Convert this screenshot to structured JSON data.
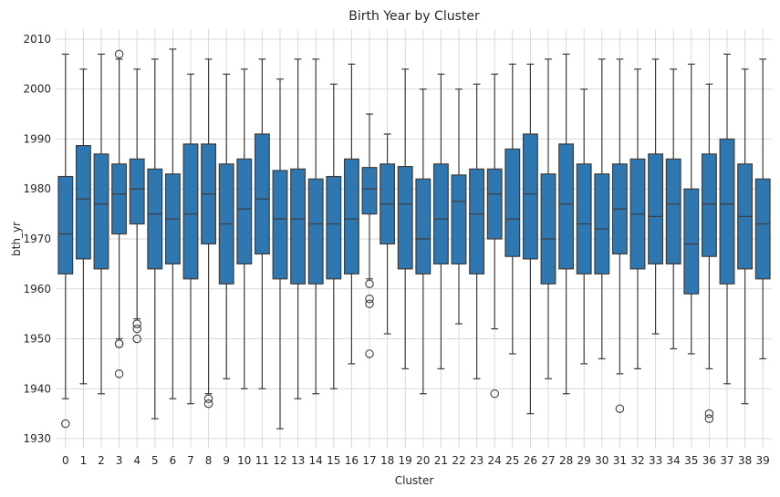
{
  "chart_data": {
    "type": "box",
    "title": "Birth Year by Cluster",
    "xlabel": "Cluster",
    "ylabel": "bth_yr",
    "ylim": [
      1928,
      2012
    ],
    "yticks": [
      1930,
      1940,
      1950,
      1960,
      1970,
      1980,
      1990,
      2000,
      2010
    ],
    "grid": true,
    "box_color": "#2f77b0",
    "edge_color": "#3d3d3d",
    "categories": [
      "0",
      "1",
      "2",
      "3",
      "4",
      "5",
      "6",
      "7",
      "8",
      "9",
      "10",
      "11",
      "12",
      "13",
      "14",
      "15",
      "16",
      "17",
      "18",
      "19",
      "20",
      "21",
      "22",
      "23",
      "24",
      "25",
      "26",
      "27",
      "28",
      "29",
      "30",
      "31",
      "32",
      "33",
      "34",
      "35",
      "36",
      "37",
      "38",
      "39"
    ],
    "boxes": [
      {
        "whisker_low": 1938,
        "q1": 1963,
        "median": 1971,
        "q3": 1982.5,
        "whisker_high": 2007,
        "outliers": [
          1933
        ]
      },
      {
        "whisker_low": 1941,
        "q1": 1966,
        "median": 1978,
        "q3": 1988.7,
        "whisker_high": 2004,
        "outliers": []
      },
      {
        "whisker_low": 1939,
        "q1": 1964,
        "median": 1977,
        "q3": 1987,
        "whisker_high": 2007,
        "outliers": []
      },
      {
        "whisker_low": 1950,
        "q1": 1971,
        "median": 1979,
        "q3": 1985,
        "whisker_high": 2006,
        "outliers": [
          2007,
          1949,
          1949,
          1943
        ]
      },
      {
        "whisker_low": 1954,
        "q1": 1973,
        "median": 1980,
        "q3": 1986,
        "whisker_high": 2004,
        "outliers": [
          1953,
          1952,
          1950
        ]
      },
      {
        "whisker_low": 1934,
        "q1": 1964,
        "median": 1975,
        "q3": 1984,
        "whisker_high": 2006,
        "outliers": []
      },
      {
        "whisker_low": 1938,
        "q1": 1965,
        "median": 1974,
        "q3": 1983,
        "whisker_high": 2008,
        "outliers": []
      },
      {
        "whisker_low": 1937,
        "q1": 1962,
        "median": 1975,
        "q3": 1989,
        "whisker_high": 2003,
        "outliers": []
      },
      {
        "whisker_low": 1939,
        "q1": 1969,
        "median": 1979,
        "q3": 1989,
        "whisker_high": 2006,
        "outliers": [
          1938,
          1937
        ]
      },
      {
        "whisker_low": 1942,
        "q1": 1961,
        "median": 1973,
        "q3": 1985,
        "whisker_high": 2003,
        "outliers": []
      },
      {
        "whisker_low": 1940,
        "q1": 1965,
        "median": 1976,
        "q3": 1986,
        "whisker_high": 2004,
        "outliers": []
      },
      {
        "whisker_low": 1940,
        "q1": 1967,
        "median": 1978,
        "q3": 1991,
        "whisker_high": 2006,
        "outliers": []
      },
      {
        "whisker_low": 1932,
        "q1": 1962,
        "median": 1974,
        "q3": 1983.7,
        "whisker_high": 2002,
        "outliers": []
      },
      {
        "whisker_low": 1938,
        "q1": 1961,
        "median": 1974,
        "q3": 1984,
        "whisker_high": 2006,
        "outliers": []
      },
      {
        "whisker_low": 1939,
        "q1": 1961,
        "median": 1973,
        "q3": 1982,
        "whisker_high": 2006,
        "outliers": []
      },
      {
        "whisker_low": 1940,
        "q1": 1962,
        "median": 1973,
        "q3": 1982.5,
        "whisker_high": 2001,
        "outliers": []
      },
      {
        "whisker_low": 1945,
        "q1": 1963,
        "median": 1974,
        "q3": 1986,
        "whisker_high": 2005,
        "outliers": []
      },
      {
        "whisker_low": 1962,
        "q1": 1975,
        "median": 1980,
        "q3": 1984.3,
        "whisker_high": 1995,
        "outliers": [
          1961,
          1958,
          1957,
          1947
        ]
      },
      {
        "whisker_low": 1951,
        "q1": 1969,
        "median": 1977,
        "q3": 1985,
        "whisker_high": 1991,
        "outliers": []
      },
      {
        "whisker_low": 1944,
        "q1": 1964,
        "median": 1977,
        "q3": 1984.5,
        "whisker_high": 2004,
        "outliers": []
      },
      {
        "whisker_low": 1939,
        "q1": 1963,
        "median": 1970,
        "q3": 1982,
        "whisker_high": 2000,
        "outliers": []
      },
      {
        "whisker_low": 1944,
        "q1": 1965,
        "median": 1974,
        "q3": 1985,
        "whisker_high": 2003,
        "outliers": []
      },
      {
        "whisker_low": 1953,
        "q1": 1965,
        "median": 1977.5,
        "q3": 1982.8,
        "whisker_high": 2000,
        "outliers": []
      },
      {
        "whisker_low": 1942,
        "q1": 1963,
        "median": 1975,
        "q3": 1984,
        "whisker_high": 2001,
        "outliers": []
      },
      {
        "whisker_low": 1952,
        "q1": 1970,
        "median": 1979,
        "q3": 1984,
        "whisker_high": 2003,
        "outliers": [
          1939
        ]
      },
      {
        "whisker_low": 1947,
        "q1": 1966.5,
        "median": 1974,
        "q3": 1988,
        "whisker_high": 2005,
        "outliers": []
      },
      {
        "whisker_low": 1935,
        "q1": 1966,
        "median": 1979,
        "q3": 1991,
        "whisker_high": 2005,
        "outliers": []
      },
      {
        "whisker_low": 1942,
        "q1": 1961,
        "median": 1970,
        "q3": 1983,
        "whisker_high": 2006,
        "outliers": []
      },
      {
        "whisker_low": 1939,
        "q1": 1964,
        "median": 1977,
        "q3": 1989,
        "whisker_high": 2007,
        "outliers": []
      },
      {
        "whisker_low": 1945,
        "q1": 1963,
        "median": 1973,
        "q3": 1985,
        "whisker_high": 2000,
        "outliers": []
      },
      {
        "whisker_low": 1946,
        "q1": 1963,
        "median": 1972,
        "q3": 1983,
        "whisker_high": 2006,
        "outliers": []
      },
      {
        "whisker_low": 1943,
        "q1": 1967,
        "median": 1976,
        "q3": 1985,
        "whisker_high": 2006,
        "outliers": [
          1936
        ]
      },
      {
        "whisker_low": 1944,
        "q1": 1964,
        "median": 1975,
        "q3": 1986,
        "whisker_high": 2004,
        "outliers": []
      },
      {
        "whisker_low": 1951,
        "q1": 1965,
        "median": 1974.5,
        "q3": 1987,
        "whisker_high": 2006,
        "outliers": []
      },
      {
        "whisker_low": 1948,
        "q1": 1965,
        "median": 1977,
        "q3": 1986,
        "whisker_high": 2004,
        "outliers": []
      },
      {
        "whisker_low": 1947,
        "q1": 1959,
        "median": 1969,
        "q3": 1980,
        "whisker_high": 2005,
        "outliers": []
      },
      {
        "whisker_low": 1944,
        "q1": 1966.5,
        "median": 1977,
        "q3": 1987,
        "whisker_high": 2001,
        "outliers": [
          1935,
          1934
        ]
      },
      {
        "whisker_low": 1941,
        "q1": 1961,
        "median": 1977,
        "q3": 1990,
        "whisker_high": 2007,
        "outliers": []
      },
      {
        "whisker_low": 1937,
        "q1": 1964,
        "median": 1974.5,
        "q3": 1985,
        "whisker_high": 2004,
        "outliers": []
      },
      {
        "whisker_low": 1946,
        "q1": 1962,
        "median": 1973,
        "q3": 1982,
        "whisker_high": 2006,
        "outliers": []
      }
    ]
  }
}
